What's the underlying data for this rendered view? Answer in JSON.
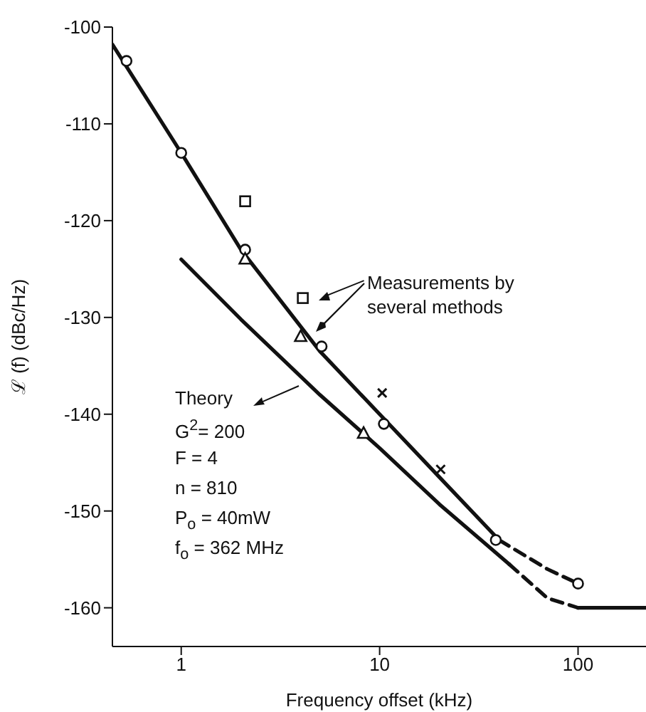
{
  "chart_data": {
    "type": "line",
    "xlabel": "Frequency offset (kHz)",
    "ylabel": "ℒ (f)  (dBc/Hz)",
    "log": "x",
    "xlim": [
      0.45,
      220
    ],
    "ylim": [
      -164,
      -100
    ],
    "xticks": [
      1,
      10,
      100
    ],
    "yticks": [
      -100,
      -110,
      -120,
      -130,
      -140,
      -150,
      -160
    ],
    "series": [
      {
        "color": "#111111",
        "line_style": "solid",
        "x": [
          0.45,
          1,
          2,
          5,
          10,
          20,
          40
        ],
        "values": [
          -101.8,
          -113,
          -123,
          -133.5,
          -140,
          -146.5,
          -153
        ]
      },
      {
        "color": "#111111",
        "line_style": "dashed",
        "x": [
          40,
          70,
          100
        ],
        "values": [
          -153,
          -156,
          -157.5
        ]
      },
      {
        "color": "#111111",
        "line_style": "solid",
        "x": [
          1,
          2,
          5,
          10,
          20,
          45
        ],
        "values": [
          -124,
          -130.2,
          -138,
          -143.5,
          -149.3,
          -155.5
        ]
      },
      {
        "color": "#111111",
        "line_style": "dashed",
        "x": [
          45,
          70,
          100
        ],
        "values": [
          -155.5,
          -159,
          -160
        ]
      },
      {
        "color": "#111111",
        "line_style": "solid",
        "x": [
          100,
          220
        ],
        "values": [
          -160,
          -160
        ]
      },
      {
        "type": "scatter",
        "color": "#111111",
        "marker": "circle",
        "x": [
          0.53,
          1,
          2.1,
          5.1,
          10.5,
          38.5,
          100
        ],
        "values": [
          -103.5,
          -113,
          -123,
          -133,
          -141,
          -153,
          -157.5
        ]
      },
      {
        "type": "scatter",
        "color": "#111111",
        "marker": "square",
        "x": [
          2.1,
          4.1
        ],
        "values": [
          -118,
          -128
        ]
      },
      {
        "type": "scatter",
        "color": "#111111",
        "marker": "triangle",
        "x": [
          2.1,
          4,
          8.3
        ],
        "values": [
          -124,
          -132,
          -142
        ]
      },
      {
        "type": "scatter",
        "color": "#111111",
        "marker": "cross",
        "x": [
          10.3,
          20.3
        ],
        "values": [
          -137.8,
          -145.7
        ]
      }
    ],
    "annotations": [
      "Measurements by several methods",
      "Theory",
      "G$^{2}$= 200",
      "F  = 4",
      "n  = 810",
      "P$_{o}$ = 40mW",
      "f$_{o}$ = 362 MHz"
    ]
  }
}
